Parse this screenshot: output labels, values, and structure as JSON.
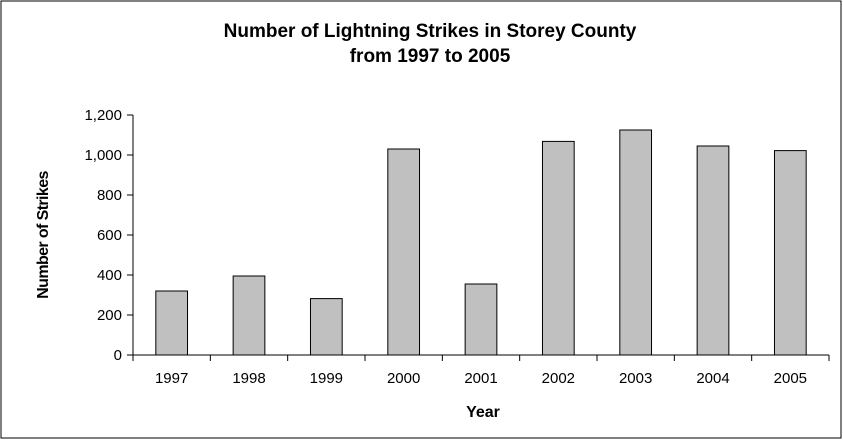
{
  "chart_data": {
    "type": "bar",
    "title_lines": [
      "Number of Lightning Strikes in Storey County",
      "from 1997 to 2005"
    ],
    "xlabel": "Year",
    "ylabel": "Number of Strikes",
    "categories": [
      "1997",
      "1998",
      "1999",
      "2000",
      "2001",
      "2002",
      "2003",
      "2004",
      "2005"
    ],
    "values": [
      320,
      395,
      282,
      1030,
      355,
      1068,
      1125,
      1045,
      1022
    ],
    "ylim": [
      0,
      1200
    ],
    "yticks": [
      0,
      200,
      400,
      600,
      800,
      1000,
      1200
    ],
    "ytick_labels": [
      "0",
      "200",
      "400",
      "600",
      "800",
      "1,000",
      "1,200"
    ],
    "grid": false,
    "legend": false,
    "bar_color": "#c0c0c0",
    "border_color": "#000000"
  }
}
